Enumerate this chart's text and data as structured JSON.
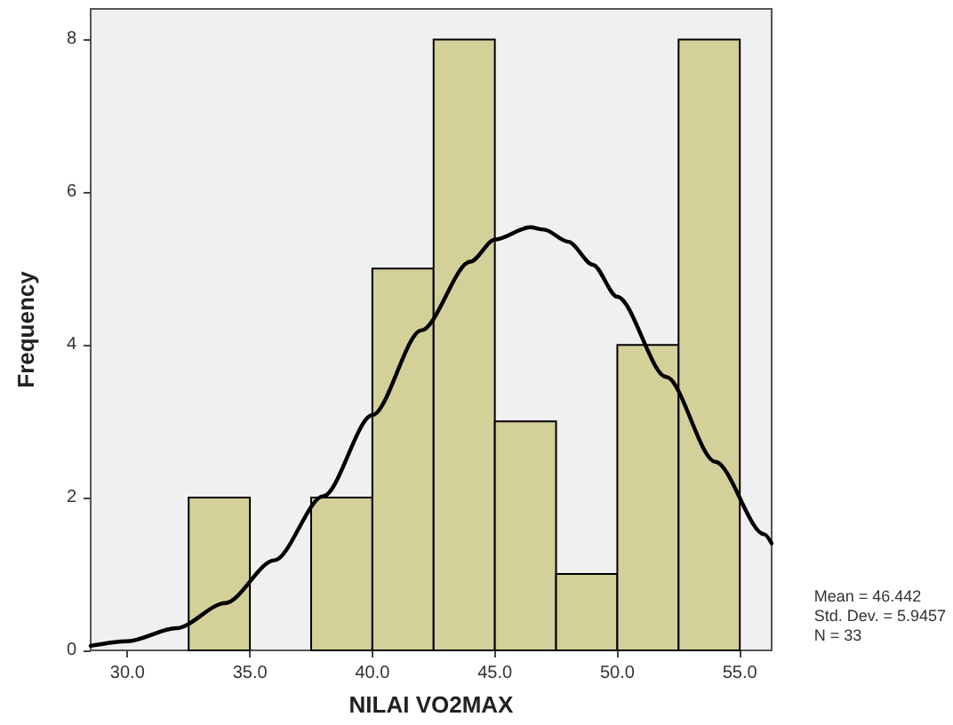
{
  "chart_data": {
    "type": "histogram",
    "xlabel": "NILAI VO2MAX",
    "ylabel": "Frequency",
    "bins": [
      32.5,
      35,
      37.5,
      40,
      42.5,
      45,
      47.5,
      50,
      52.5,
      55
    ],
    "values": [
      2,
      0,
      2,
      5,
      8,
      3,
      1,
      4,
      8
    ],
    "color": "#d4d09a",
    "series": [
      {
        "type": "line",
        "color": "#000000",
        "x": [
          28.5,
          30,
          32,
          34,
          36,
          38,
          40,
          42,
          44,
          45,
          46.442,
          47,
          48,
          49,
          50,
          52,
          54,
          56,
          56.3
        ],
        "values": [
          0.06,
          0.12,
          0.29,
          0.62,
          1.18,
          2.02,
          3.08,
          4.19,
          5.09,
          5.38,
          5.54,
          5.51,
          5.35,
          5.05,
          4.63,
          3.58,
          2.47,
          1.52,
          1.4
        ]
      }
    ],
    "marker": "none",
    "xlim": [
      28.5,
      56.3
    ],
    "xticks": [
      {
        "value": 30,
        "label": "30.0"
      },
      {
        "value": 35,
        "label": "35.0"
      },
      {
        "value": 40,
        "label": "40.0"
      },
      {
        "value": 45,
        "label": "45.0"
      },
      {
        "value": 50,
        "label": "50.0"
      },
      {
        "value": 55,
        "label": "55.0"
      }
    ],
    "ylim": [
      0,
      8.4
    ],
    "yticks": [
      0,
      2,
      4,
      6,
      8
    ],
    "grid": false,
    "annotations": [
      "Mean = 46.442",
      "Std. Dev. = 5.9457",
      "N = 33"
    ]
  }
}
